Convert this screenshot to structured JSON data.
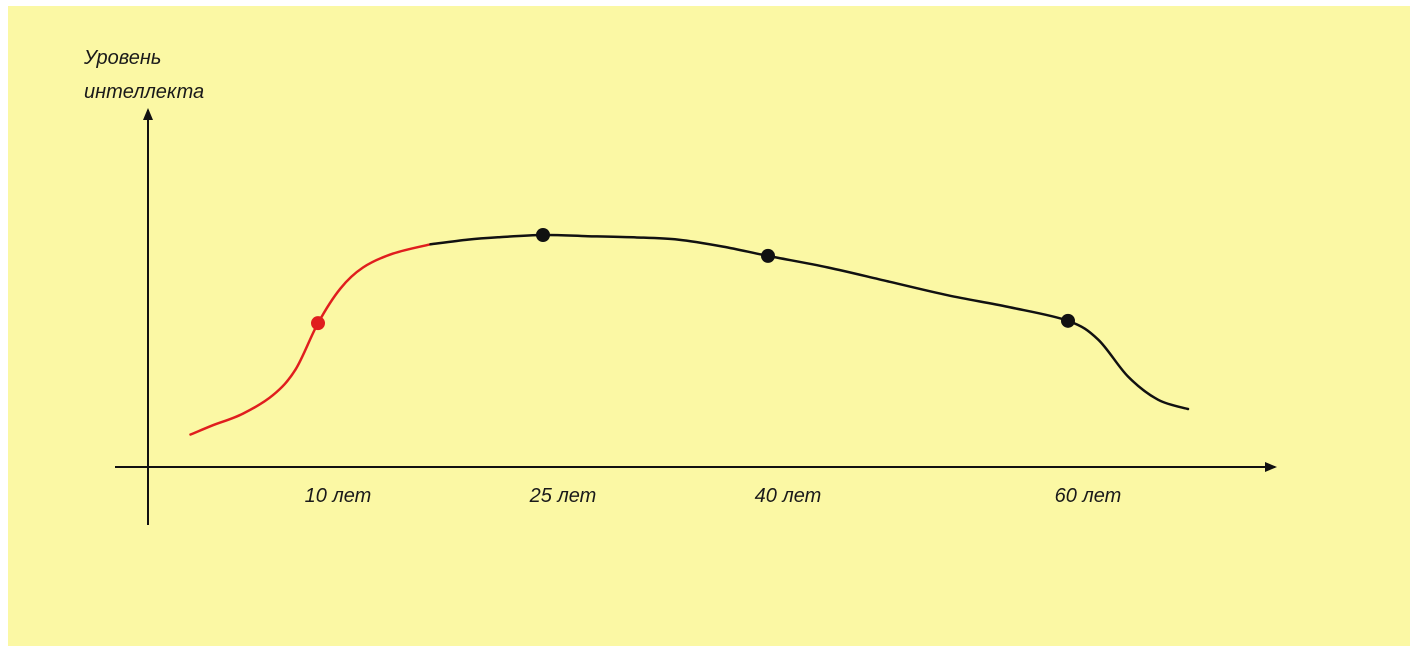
{
  "colors": {
    "background": "#fbf8a4",
    "early_segment": "#e01e1e",
    "curve": "#111111",
    "axis": "#111111"
  },
  "chart_data": {
    "type": "line",
    "ylabel": [
      "Уровень",
      "интеллекта"
    ],
    "xlabel": "",
    "x_ticks": [
      {
        "age": 10,
        "label": "10 лет"
      },
      {
        "age": 25,
        "label": "25 лет"
      },
      {
        "age": 40,
        "label": "40 лет"
      },
      {
        "age": 60,
        "label": "60 лет"
      }
    ],
    "xlim": [
      0,
      72
    ],
    "ylim": [
      0,
      100
    ],
    "y_ticks_shown": false,
    "grid": false,
    "series": [
      {
        "color": "#e01e1e",
        "x": [
          1.5,
          3,
          5,
          7,
          8.5,
          10,
          11.5,
          13,
          15,
          17.5
        ],
        "y": [
          14,
          18,
          23,
          31,
          42,
          62,
          77,
          86,
          92,
          96
        ]
      },
      {
        "color": "#111111",
        "x": [
          17.5,
          20,
          22,
          25,
          28,
          31,
          34,
          37,
          40,
          44,
          48,
          52,
          56,
          60,
          62,
          64,
          66,
          68
        ],
        "y": [
          96,
          98,
          99,
          100,
          99.5,
          99,
          98,
          95,
          91,
          86,
          80,
          74,
          69,
          63,
          55,
          39,
          29,
          25
        ]
      }
    ],
    "highlighted_points": [
      {
        "x": 10,
        "y": 62,
        "color": "#e01e1e"
      },
      {
        "x": 25,
        "y": 100,
        "color": "#111111"
      },
      {
        "x": 40,
        "y": 91,
        "color": "#111111"
      },
      {
        "x": 60,
        "y": 63,
        "color": "#111111"
      }
    ]
  }
}
